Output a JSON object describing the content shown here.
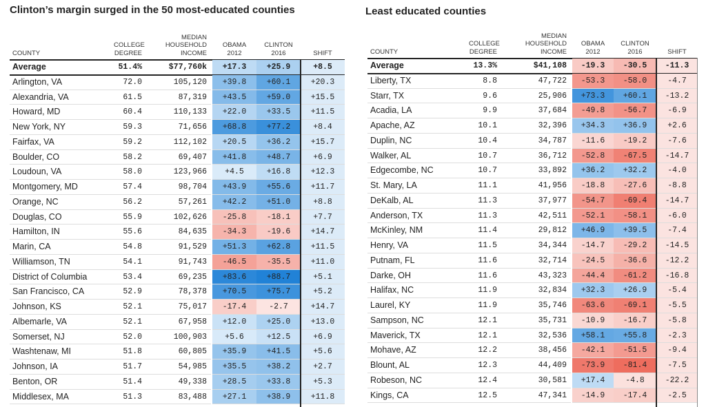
{
  "tables": [
    {
      "title": "Clinton’s margin surged in the 50 most-educated counties",
      "headers": [
        [
          "COUNTY"
        ],
        [
          "COLLEGE",
          "DEGREE"
        ],
        [
          "MEDIAN",
          "HOUSEHOLD",
          "INCOME"
        ],
        [
          "OBAMA",
          "2012"
        ],
        [
          "CLINTON",
          "2016"
        ],
        [
          "SHIFT"
        ]
      ],
      "rows": [
        [
          "Average",
          "51.4%",
          "$77,760k",
          "+17.3",
          "+25.9",
          "+8.5"
        ],
        [
          "Arlington, VA",
          "72.0",
          "105,120",
          "+39.8",
          "+60.1",
          "+20.3"
        ],
        [
          "Alexandria, VA",
          "61.5",
          "87,319",
          "+43.5",
          "+59.0",
          "+15.5"
        ],
        [
          "Howard, MD",
          "60.4",
          "110,133",
          "+22.0",
          "+33.5",
          "+11.5"
        ],
        [
          "New York, NY",
          "59.3",
          "71,656",
          "+68.8",
          "+77.2",
          "+8.4"
        ],
        [
          "Fairfax, VA",
          "59.2",
          "112,102",
          "+20.5",
          "+36.2",
          "+15.7"
        ],
        [
          "Boulder, CO",
          "58.2",
          "69,407",
          "+41.8",
          "+48.7",
          "+6.9"
        ],
        [
          "Loudoun, VA",
          "58.0",
          "123,966",
          "+4.5",
          "+16.8",
          "+12.3"
        ],
        [
          "Montgomery, MD",
          "57.4",
          "98,704",
          "+43.9",
          "+55.6",
          "+11.7"
        ],
        [
          "Orange, NC",
          "56.2",
          "57,261",
          "+42.2",
          "+51.0",
          "+8.8"
        ],
        [
          "Douglas, CO",
          "55.9",
          "102,626",
          "-25.8",
          "-18.1",
          "+7.7"
        ],
        [
          "Hamilton, IN",
          "55.6",
          "84,635",
          "-34.3",
          "-19.6",
          "+14.7"
        ],
        [
          "Marin, CA",
          "54.8",
          "91,529",
          "+51.3",
          "+62.8",
          "+11.5"
        ],
        [
          "Williamson, TN",
          "54.1",
          "91,743",
          "-46.5",
          "-35.5",
          "+11.0"
        ],
        [
          "District of Columbia",
          "53.4",
          "69,235",
          "+83.6",
          "+88.7",
          "+5.1"
        ],
        [
          "San Francisco, CA",
          "52.9",
          "78,378",
          "+70.5",
          "+75.7",
          "+5.2"
        ],
        [
          "Johnson, KS",
          "52.1",
          "75,017",
          "-17.4",
          "-2.7",
          "+14.7"
        ],
        [
          "Albemarle, VA",
          "52.1",
          "67,958",
          "+12.0",
          "+25.0",
          "+13.0"
        ],
        [
          "Somerset, NJ",
          "52.0",
          "100,903",
          "+5.6",
          "+12.5",
          "+6.9"
        ],
        [
          "Washtenaw, MI",
          "51.8",
          "60,805",
          "+35.9",
          "+41.5",
          "+5.6"
        ],
        [
          "Johnson, IA",
          "51.7",
          "54,985",
          "+35.5",
          "+38.2",
          "+2.7"
        ],
        [
          "Benton, OR",
          "51.4",
          "49,338",
          "+28.5",
          "+33.8",
          "+5.3"
        ],
        [
          "Middlesex, MA",
          "51.3",
          "83,488",
          "+27.1",
          "+38.9",
          "+11.8"
        ]
      ]
    },
    {
      "title": "Least educated counties",
      "headers": [
        [
          "COUNTY"
        ],
        [
          "COLLEGE",
          "DEGREE"
        ],
        [
          "MEDIAN",
          "HOUSEHOLD",
          "INCOME"
        ],
        [
          "OBAMA",
          "2012"
        ],
        [
          "CLINTON",
          "2016"
        ],
        [
          "SHIFT"
        ]
      ],
      "rows": [
        [
          "Average",
          "13.3%",
          "$41,108",
          "-19.3",
          "-30.5",
          "-11.3"
        ],
        [
          "Liberty, TX",
          "8.8",
          "47,722",
          "-53.3",
          "-58.0",
          "-4.7"
        ],
        [
          "Starr, TX",
          "9.6",
          "25,906",
          "+73.3",
          "+60.1",
          "-13.2"
        ],
        [
          "Acadia, LA",
          "9.9",
          "37,684",
          "-49.8",
          "-56.7",
          "-6.9"
        ],
        [
          "Apache, AZ",
          "10.1",
          "32,396",
          "+34.3",
          "+36.9",
          "+2.6"
        ],
        [
          "Duplin, NC",
          "10.4",
          "34,787",
          "-11.6",
          "-19.2",
          "-7.6"
        ],
        [
          "Walker, AL",
          "10.7",
          "36,712",
          "-52.8",
          "-67.5",
          "-14.7"
        ],
        [
          "Edgecombe, NC",
          "10.7",
          "33,892",
          "+36.2",
          "+32.2",
          "-4.0"
        ],
        [
          "St. Mary, LA",
          "11.1",
          "41,956",
          "-18.8",
          "-27.6",
          "-8.8"
        ],
        [
          "DeKalb, AL",
          "11.3",
          "37,977",
          "-54.7",
          "-69.4",
          "-14.7"
        ],
        [
          "Anderson, TX",
          "11.3",
          "42,511",
          "-52.1",
          "-58.1",
          "-6.0"
        ],
        [
          "McKinley, NM",
          "11.4",
          "29,812",
          "+46.9",
          "+39.5",
          "-7.4"
        ],
        [
          "Henry, VA",
          "11.5",
          "34,344",
          "-14.7",
          "-29.2",
          "-14.5"
        ],
        [
          "Putnam, FL",
          "11.6",
          "32,714",
          "-24.5",
          "-36.6",
          "-12.2"
        ],
        [
          "Darke, OH",
          "11.6",
          "43,323",
          "-44.4",
          "-61.2",
          "-16.8"
        ],
        [
          "Halifax, NC",
          "11.9",
          "32,834",
          "+32.3",
          "+26.9",
          "-5.4"
        ],
        [
          "Laurel, KY",
          "11.9",
          "35,746",
          "-63.6",
          "-69.1",
          "-5.5"
        ],
        [
          "Sampson, NC",
          "12.1",
          "35,731",
          "-10.9",
          "-16.7",
          "-5.8"
        ],
        [
          "Maverick, TX",
          "12.1",
          "32,536",
          "+58.1",
          "+55.8",
          "-2.3"
        ],
        [
          "Mohave, AZ",
          "12.2",
          "38,456",
          "-42.1",
          "-51.5",
          "-9.4"
        ],
        [
          "Blount, AL",
          "12.3",
          "44,409",
          "-73.9",
          "-81.4",
          "-7.5"
        ],
        [
          "Robeson, NC",
          "12.4",
          "30,581",
          "+17.4",
          "-4.8",
          "-22.2"
        ],
        [
          "Kings, CA",
          "12.5",
          "47,341",
          "-14.9",
          "-17.4",
          "-2.5"
        ]
      ]
    }
  ]
}
